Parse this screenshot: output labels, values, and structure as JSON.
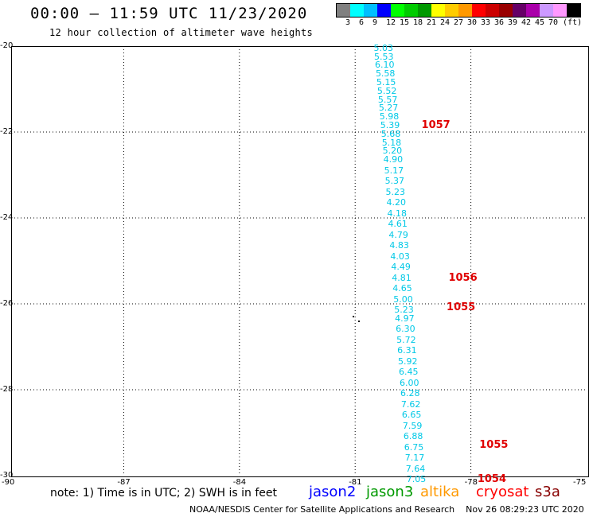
{
  "header": {
    "title": "00:00 – 11:59 UTC 11/23/2020",
    "subtitle": "12 hour collection of altimeter wave heights"
  },
  "legend": {
    "colors": [
      "#808080",
      "#00ffff",
      "#00bfff",
      "#0000ff",
      "#00ff00",
      "#00cc00",
      "#009900",
      "#ffff00",
      "#ffcc00",
      "#ff9900",
      "#ff0000",
      "#cc0000",
      "#990000",
      "#660066",
      "#aa00aa",
      "#cc99ff",
      "#ff99ff",
      "#000000"
    ],
    "labels": [
      "3",
      "6",
      "9",
      "12",
      "15",
      "18",
      "21",
      "24",
      "27",
      "30",
      "33",
      "36",
      "39",
      "42",
      "45",
      "70 (ft)"
    ]
  },
  "axes": {
    "y_ticks": [
      "-20",
      "-22",
      "-24",
      "-26",
      "-28",
      "-30"
    ],
    "x_ticks": [
      "-90",
      "-87",
      "-84",
      "-81",
      "-78",
      "-75"
    ]
  },
  "chart_data": {
    "type": "scatter",
    "xlim": [
      -90,
      -75
    ],
    "ylim": [
      -30,
      -20
    ],
    "grid": true,
    "wave_heights_ft": [
      {
        "lon": -80.23,
        "lat": -20.05,
        "value": "5.03"
      },
      {
        "lon": -80.22,
        "lat": -20.25,
        "value": "5.53"
      },
      {
        "lon": -80.2,
        "lat": -20.45,
        "value": "6.10"
      },
      {
        "lon": -80.18,
        "lat": -20.65,
        "value": "5.58"
      },
      {
        "lon": -80.16,
        "lat": -20.85,
        "value": "5.15"
      },
      {
        "lon": -80.14,
        "lat": -21.05,
        "value": "5.52"
      },
      {
        "lon": -80.12,
        "lat": -21.25,
        "value": "5.57"
      },
      {
        "lon": -80.1,
        "lat": -21.45,
        "value": "5.27"
      },
      {
        "lon": -80.08,
        "lat": -21.65,
        "value": "5.98"
      },
      {
        "lon": -80.06,
        "lat": -21.85,
        "value": "5.39"
      },
      {
        "lon": -80.04,
        "lat": -22.05,
        "value": "5.68"
      },
      {
        "lon": -80.02,
        "lat": -22.25,
        "value": "5.18"
      },
      {
        "lon": -80.0,
        "lat": -22.45,
        "value": "5.20"
      },
      {
        "lon": -79.98,
        "lat": -22.65,
        "value": "4.90"
      },
      {
        "lon": -79.96,
        "lat": -22.9,
        "value": "5.17"
      },
      {
        "lon": -79.94,
        "lat": -23.15,
        "value": "5.37"
      },
      {
        "lon": -79.92,
        "lat": -23.4,
        "value": "5.23"
      },
      {
        "lon": -79.9,
        "lat": -23.65,
        "value": "4.20"
      },
      {
        "lon": -79.88,
        "lat": -23.9,
        "value": "4.18"
      },
      {
        "lon": -79.86,
        "lat": -24.15,
        "value": "4.61"
      },
      {
        "lon": -79.84,
        "lat": -24.4,
        "value": "4.79"
      },
      {
        "lon": -79.82,
        "lat": -24.65,
        "value": "4.83"
      },
      {
        "lon": -79.8,
        "lat": -24.9,
        "value": "4.03"
      },
      {
        "lon": -79.78,
        "lat": -25.15,
        "value": "4.49"
      },
      {
        "lon": -79.76,
        "lat": -25.4,
        "value": "4.81"
      },
      {
        "lon": -79.74,
        "lat": -25.65,
        "value": "4.65"
      },
      {
        "lon": -79.72,
        "lat": -25.9,
        "value": "5.00"
      },
      {
        "lon": -79.7,
        "lat": -26.15,
        "value": "5.23"
      },
      {
        "lon": -79.68,
        "lat": -26.35,
        "value": "4.97"
      },
      {
        "lon": -79.66,
        "lat": -26.6,
        "value": "6.30"
      },
      {
        "lon": -79.64,
        "lat": -26.85,
        "value": "5.72"
      },
      {
        "lon": -79.62,
        "lat": -27.1,
        "value": "6.31"
      },
      {
        "lon": -79.6,
        "lat": -27.35,
        "value": "5.92"
      },
      {
        "lon": -79.58,
        "lat": -27.6,
        "value": "6.45"
      },
      {
        "lon": -79.56,
        "lat": -27.85,
        "value": "6.00"
      },
      {
        "lon": -79.54,
        "lat": -28.1,
        "value": "6.28"
      },
      {
        "lon": -79.52,
        "lat": -28.35,
        "value": "7.62"
      },
      {
        "lon": -79.5,
        "lat": -28.6,
        "value": "6.65"
      },
      {
        "lon": -79.48,
        "lat": -28.85,
        "value": "7.59"
      },
      {
        "lon": -79.46,
        "lat": -29.1,
        "value": "6.88"
      },
      {
        "lon": -79.44,
        "lat": -29.35,
        "value": "6.75"
      },
      {
        "lon": -79.42,
        "lat": -29.6,
        "value": "7.17"
      },
      {
        "lon": -79.4,
        "lat": -29.85,
        "value": "7.64"
      },
      {
        "lon": -79.38,
        "lat": -30.1,
        "value": "7.05"
      }
    ],
    "pass_times": [
      {
        "lon": -78.95,
        "lat": -21.85,
        "value": "1057"
      },
      {
        "lon": -78.25,
        "lat": -25.4,
        "value": "1056"
      },
      {
        "lon": -78.3,
        "lat": -26.1,
        "value": "1055"
      },
      {
        "lon": -77.45,
        "lat": -29.3,
        "value": "1055"
      },
      {
        "lon": -77.5,
        "lat": -30.1,
        "value": "1054"
      }
    ],
    "markers": [
      {
        "lon": -81.05,
        "lat": -26.3
      },
      {
        "lon": -80.9,
        "lat": -26.4
      }
    ]
  },
  "notes": {
    "text": "note: 1) Time is in UTC; 2) SWH is in feet"
  },
  "satellites": [
    {
      "name": "jason2",
      "color": "#0000ff"
    },
    {
      "name": "jason3",
      "color": "#009900"
    },
    {
      "name": "altika",
      "color": "#ff9900"
    },
    {
      "name": "cryosat",
      "color": "#ff0000"
    },
    {
      "name": "s3a",
      "color": "#880000"
    }
  ],
  "footer": {
    "text": "NOAA/NESDIS Center for Satellite Applications and Research    Nov 26 08:29:23 UTC 2020"
  }
}
